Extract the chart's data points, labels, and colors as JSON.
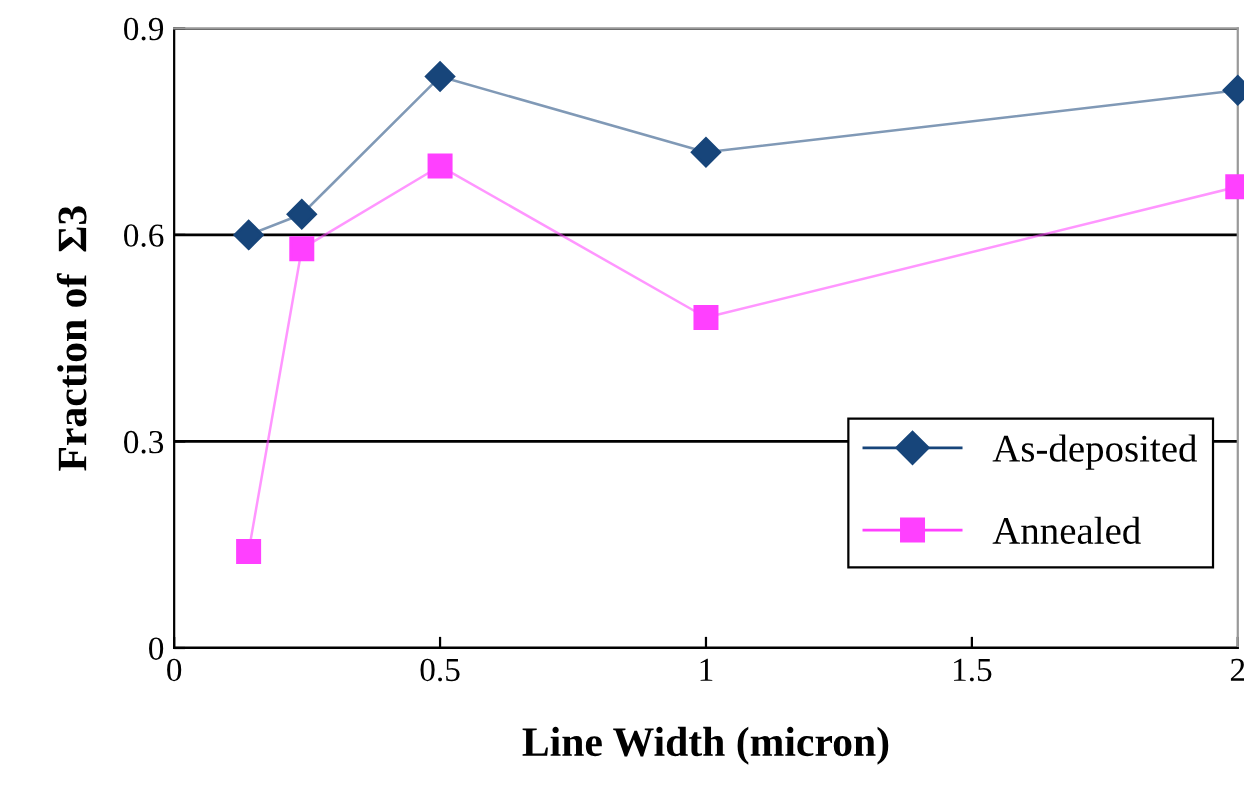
{
  "chart_data": {
    "type": "line",
    "xlabel": "Line Width (micron)",
    "ylabel": "Fraction of  Σ3",
    "xlim": [
      0,
      2
    ],
    "xticks": [
      0,
      0.5,
      1,
      1.5,
      2
    ],
    "ylim": [
      0,
      0.9
    ],
    "yticks": [
      0,
      0.3,
      0.6,
      0.9
    ],
    "grid": "y",
    "legend": "right",
    "line_style": "solid",
    "series": [
      {
        "name": "As-deposited",
        "color": "#17457a",
        "marker": "diamond",
        "x": [
          0.14,
          0.24,
          0.5,
          1.0,
          2.0
        ],
        "values": [
          0.6,
          0.63,
          0.83,
          0.72,
          0.81
        ]
      },
      {
        "name": "Annealed",
        "color": "#ff40ff",
        "marker": "square",
        "x": [
          0.14,
          0.24,
          0.5,
          1.0,
          2.0
        ],
        "values": [
          0.14,
          0.58,
          0.7,
          0.48,
          0.67
        ]
      }
    ]
  }
}
